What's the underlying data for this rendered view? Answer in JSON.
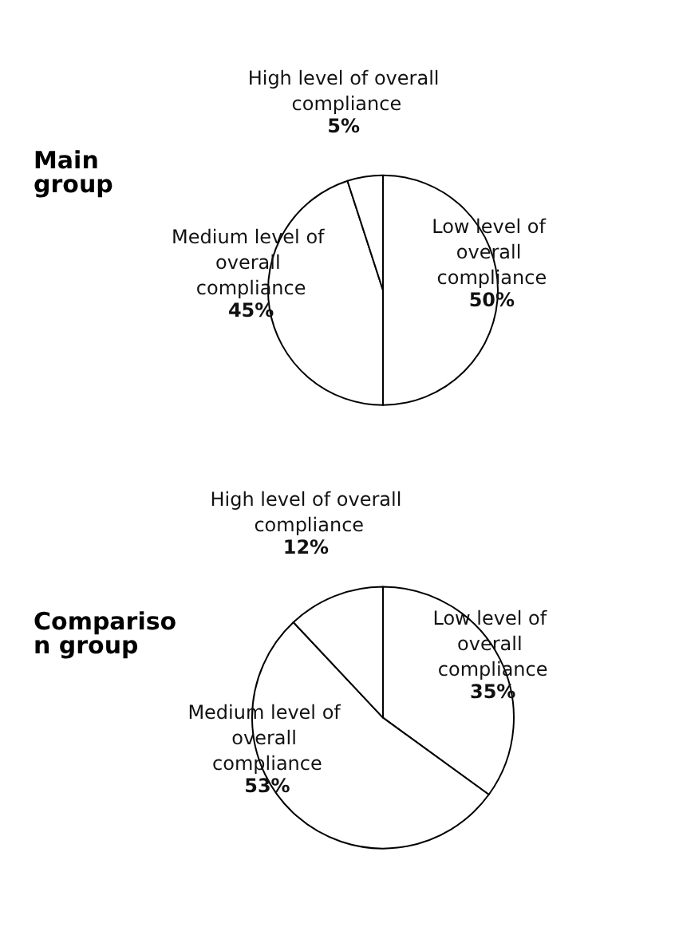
{
  "chart_data": [
    {
      "type": "pie",
      "title": "Main group",
      "categories": [
        "Low level of overall compliance",
        "Medium level of overall compliance",
        "High level of overall compliance"
      ],
      "values": [
        50,
        45,
        5
      ],
      "colors": [
        "#ffffff",
        "#ffffff",
        "#ffffff"
      ],
      "value_labels": [
        "50%",
        "45%",
        "5%"
      ],
      "legend": false
    },
    {
      "type": "pie",
      "title": "Comparison group",
      "categories": [
        "Low level of overall compliance",
        "Medium level of overall compliance",
        "High level of overall compliance"
      ],
      "values": [
        35,
        53,
        12
      ],
      "colors": [
        "#ffffff",
        "#ffffff",
        "#ffffff"
      ],
      "value_labels": [
        "35%",
        "53%",
        "12%"
      ],
      "legend": false
    }
  ]
}
